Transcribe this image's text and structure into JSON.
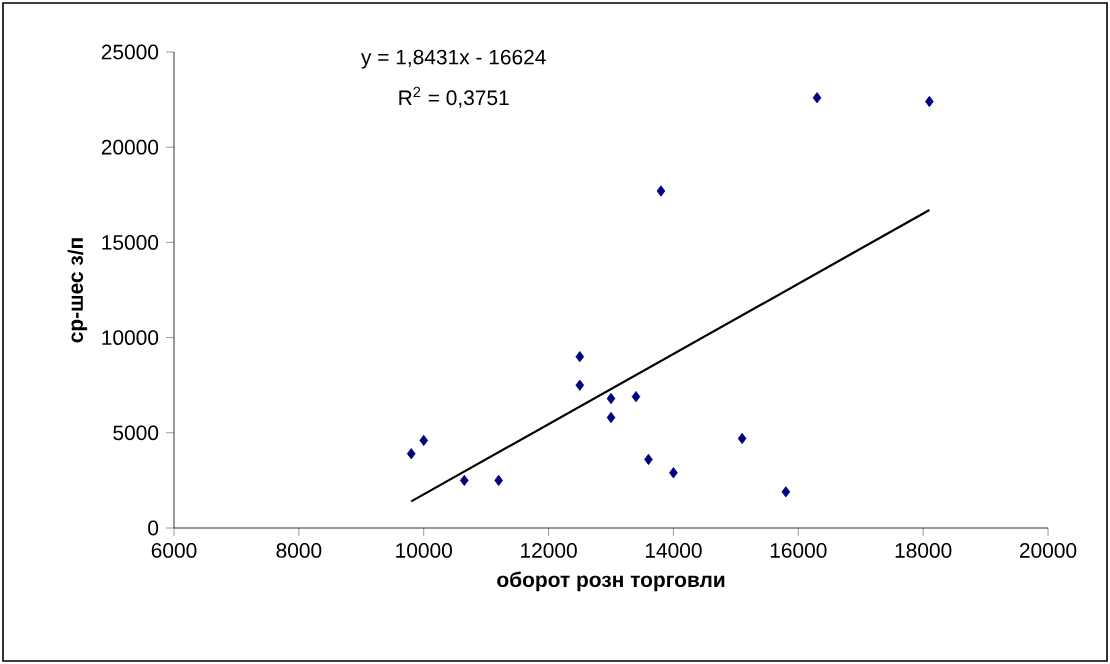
{
  "chart_data": {
    "type": "scatter",
    "xlabel": "оборот розн торговли",
    "ylabel": "ср-шес з/п",
    "annotations": [
      "y = 1,8431x - 16624",
      "R$^{2}$ = 0,3751"
    ],
    "series": [
      {
        "color": "#000080",
        "marker": "diamond",
        "x": [
          9800,
          10000,
          10650,
          11200,
          12500,
          12500,
          13000,
          13000,
          13400,
          13600,
          13800,
          14000,
          15100,
          15800,
          16300,
          18100
        ],
        "values": [
          3900,
          4600,
          2500,
          2500,
          9000,
          7500,
          6800,
          5800,
          6900,
          3600,
          17700,
          2900,
          4700,
          1900,
          22600,
          22400
        ]
      },
      {
        "type": "line",
        "color": "#000000",
        "marker": "none",
        "line_style": "solid",
        "x": [
          9800,
          18100
        ],
        "values": [
          1400,
          16700
        ]
      }
    ],
    "xlim": [
      6000,
      20000
    ],
    "xticks": [
      6000,
      8000,
      10000,
      12000,
      14000,
      16000,
      18000,
      20000
    ],
    "ylim": [
      0,
      25000
    ],
    "yticks": [
      0,
      5000,
      10000,
      15000,
      20000,
      25000
    ],
    "grid": false
  }
}
